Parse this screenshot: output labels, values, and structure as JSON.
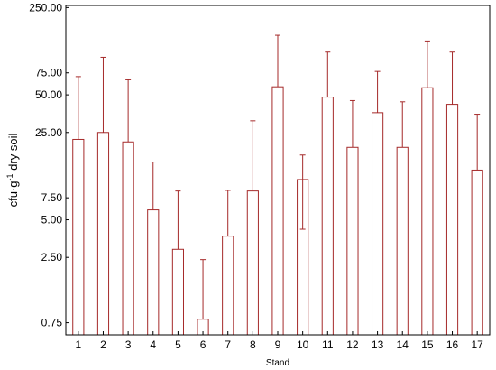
{
  "chart_data": {
    "type": "bar",
    "title": "",
    "xlabel": "Stand",
    "ylabel_parts": [
      "cfu·g",
      "-1",
      " dry soil"
    ],
    "y_scale": "log",
    "ylim": [
      0.6,
      260
    ],
    "y_ticks": [
      0.75,
      2.5,
      5.0,
      7.5,
      25.0,
      50.0,
      75.0,
      250.0
    ],
    "y_tick_labels": [
      "0.75",
      "2.50",
      "5.00",
      "7.50",
      "25.00",
      "50.00",
      "75.00",
      "250.00"
    ],
    "categories": [
      "1",
      "2",
      "3",
      "4",
      "5",
      "6",
      "7",
      "8",
      "9",
      "10",
      "11",
      "12",
      "13",
      "14",
      "15",
      "16",
      "17"
    ],
    "values": [
      22.0,
      25.0,
      21.0,
      6.0,
      2.9,
      0.8,
      3.7,
      8.5,
      58.0,
      10.5,
      48.0,
      19.0,
      36.0,
      19.0,
      57.0,
      42.0,
      12.5
    ],
    "err_upper": [
      70.0,
      100.0,
      66.0,
      14.5,
      8.5,
      2.4,
      8.6,
      31.0,
      150.0,
      16.5,
      110.0,
      45.0,
      77.0,
      44.0,
      135.0,
      110.0,
      35.0
    ],
    "err_lower": [
      null,
      null,
      null,
      null,
      null,
      null,
      null,
      null,
      null,
      4.2,
      null,
      null,
      null,
      null,
      null,
      null,
      null
    ],
    "grid": false,
    "legend": "none",
    "colors": {
      "bar": "#a52a2a",
      "axis": "#000000"
    }
  }
}
